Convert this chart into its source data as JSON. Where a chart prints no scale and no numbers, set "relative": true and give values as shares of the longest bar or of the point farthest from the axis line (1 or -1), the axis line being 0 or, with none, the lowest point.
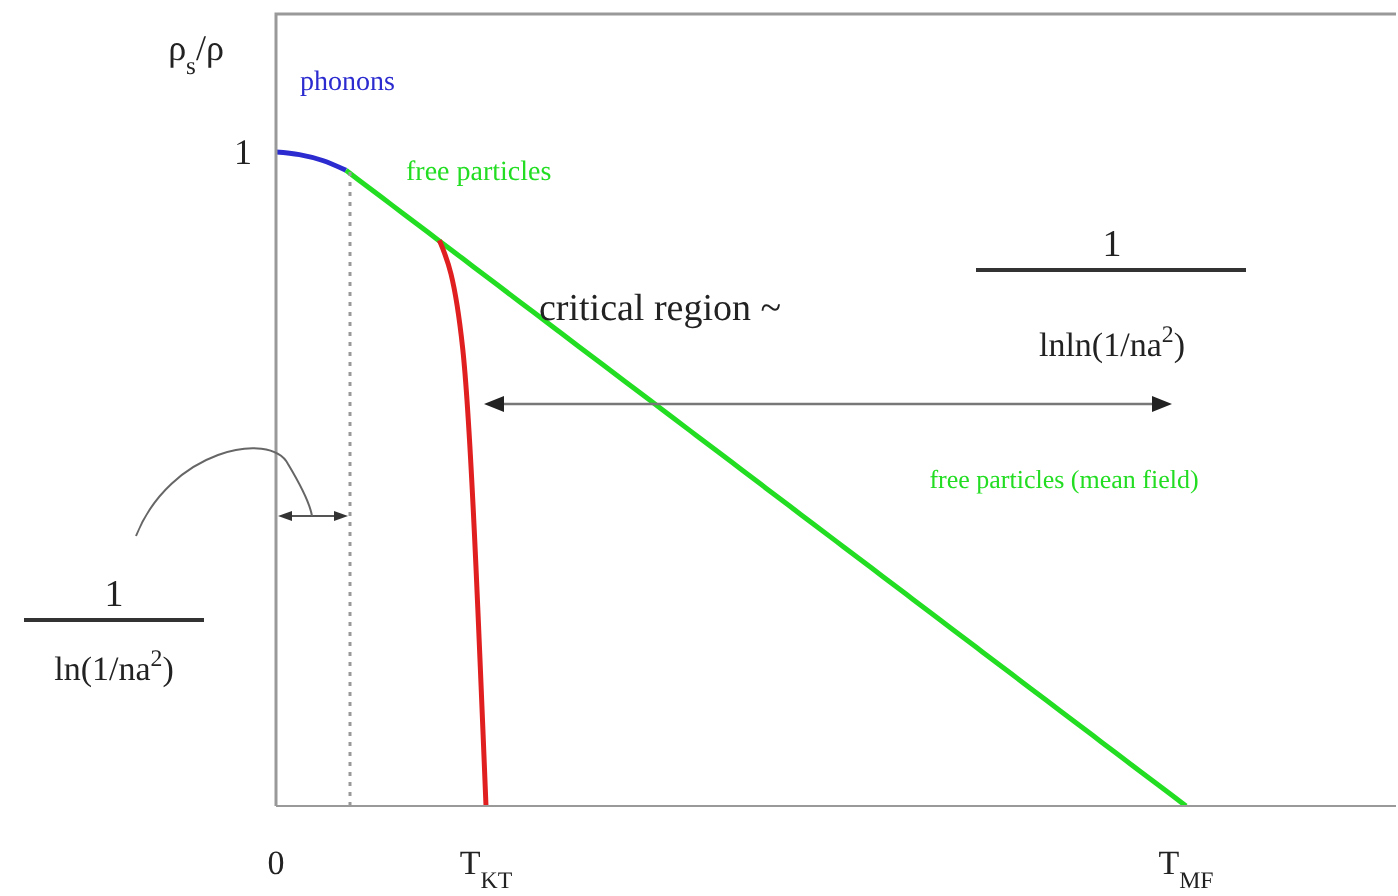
{
  "chart_data": {
    "type": "line",
    "relative": true,
    "ylabel": "ρ$_{s}$/ρ",
    "marker": "none",
    "line_style": "solid",
    "categories": [
      "0",
      null,
      null,
      null,
      null,
      null,
      null,
      null,
      null,
      "T$_{KT}$",
      null,
      null,
      null,
      null,
      null,
      null,
      null,
      null,
      null,
      null,
      null,
      null,
      null,
      null,
      null,
      null,
      null,
      null,
      null,
      null,
      null,
      null,
      null,
      null,
      null,
      null,
      null,
      null,
      null,
      "T$_{MF}$",
      null,
      null,
      null,
      null,
      null,
      null,
      null,
      null,
      null
    ],
    "series": [
      {
        "name": "phonons",
        "color": "#2b2bd0",
        "values": [
          1,
          0.996,
          0.987,
          0.972,
          null,
          null,
          null,
          null,
          null,
          null,
          null,
          null,
          null,
          null,
          null,
          null,
          null,
          null,
          null,
          null,
          null,
          null,
          null,
          null,
          null,
          null,
          null,
          null,
          null,
          null,
          null,
          null,
          null,
          null,
          null,
          null,
          null,
          null,
          null,
          null,
          null,
          null,
          null,
          null,
          null,
          null,
          null,
          null,
          null
        ]
      },
      {
        "name": "free particles",
        "color": "#22dd22",
        "values": [
          null,
          null,
          null,
          0.972,
          0.945,
          0.918,
          0.891,
          0.864,
          0.837,
          0.81,
          0.783,
          0.756,
          0.729,
          0.702,
          0.675,
          0.648,
          0.621,
          0.594,
          0.567,
          0.54,
          0.513,
          0.486,
          0.459,
          0.432,
          0.405,
          0.378,
          0.351,
          0.324,
          0.297,
          0.27,
          0.243,
          0.216,
          0.189,
          0.162,
          0.135,
          0.108,
          0.081,
          0.054,
          0.027,
          0,
          null,
          null,
          null,
          null,
          null,
          null,
          null,
          null,
          null
        ]
      },
      {
        "color": "#e02020",
        "values": [
          null,
          null,
          null,
          null,
          null,
          null,
          null,
          0.865,
          0.7,
          0,
          null,
          null,
          null,
          null,
          null,
          null,
          null,
          null,
          null,
          null,
          null,
          null,
          null,
          null,
          null,
          null,
          null,
          null,
          null,
          null,
          null,
          null,
          null,
          null,
          null,
          null,
          null,
          null,
          null,
          null,
          null,
          null,
          null,
          null,
          null,
          null,
          null,
          null,
          null
        ]
      }
    ],
    "annotations": [
      {
        "text": "1",
        "x": "0",
        "y": 1
      },
      "critical region ~",
      "1",
      "lnln(1/na$^{2}$)",
      "1",
      "ln(1/na$^{2}$)",
      "free particles (mean field)"
    ]
  }
}
